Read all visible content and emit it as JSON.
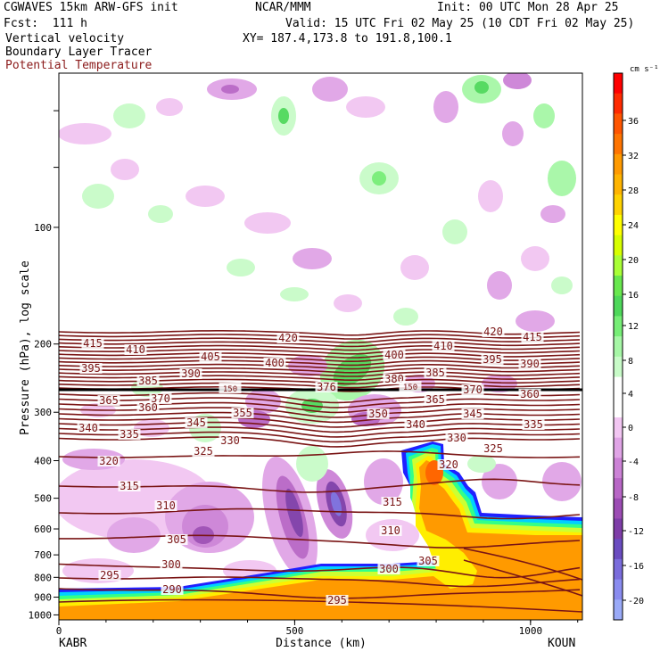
{
  "header": {
    "model": "CGWAVES 15km ARW-GFS init",
    "fcst": "Fcst:  111 h",
    "org": "NCAR/MMM",
    "init": "Init: 00 UTC Mon 28 Apr 25",
    "valid": "Valid: 15 UTC Fri 02 May 25 (10 CDT Fri 02 May 25)",
    "field1": "Vertical velocity",
    "field2": "Boundary Layer Tracer",
    "field3": "Potential Temperature",
    "xy": "XY= 187.4,173.8 to 191.8,100.1",
    "field3_color": "#8b1a1a"
  },
  "chart_data": {
    "type": "heatmap",
    "xlabel": "Distance (km)",
    "ylabel": "Pressure (hPa), log scale",
    "x_ticks": [
      "0",
      "500",
      "1000"
    ],
    "x_range": [
      0,
      1110
    ],
    "y_ticks": [
      "100",
      "200",
      "300",
      "400",
      "500",
      "600",
      "700",
      "800",
      "900",
      "1000"
    ],
    "y_range_hPa": [
      40,
      1030
    ],
    "y_scale": "log",
    "left_endpoint": "KABR",
    "right_endpoint": "KOUN",
    "colorbar": {
      "unit": "cm s⁻¹",
      "tick_labels": [
        "36",
        "32",
        "28",
        "24",
        "20",
        "16",
        "12",
        "8",
        "4",
        "0",
        "-4",
        "-8",
        "-12",
        "-16",
        "-20"
      ],
      "colors": [
        "#ff0000",
        "#ff2a00",
        "#ff5500",
        "#ff7400",
        "#ff9a00",
        "#ffb400",
        "#ffd300",
        "#ffff00",
        "#d7ff00",
        "#a9ff36",
        "#68e84e",
        "#4ed85a",
        "#76ee76",
        "#a6f7a6",
        "#c8fbc8",
        "#ffffff",
        "#ffffff",
        "#f2c6f2",
        "#e0a4e6",
        "#cc82d6",
        "#b866c6",
        "#9c4cb4",
        "#7e3da8",
        "#6a4cc0",
        "#7a6cdc",
        "#8a8cf0",
        "#9aaaf8"
      ]
    },
    "theta_labels": [
      "415",
      "410",
      "420",
      "410",
      "420",
      "415",
      "395",
      "405",
      "400",
      "400",
      "395",
      "390",
      "390",
      "385",
      "376",
      "380",
      "385",
      "365",
      "370",
      "370",
      "360",
      "365",
      "360",
      "355",
      "350",
      "345",
      "340",
      "335",
      "345",
      "330",
      "340",
      "330",
      "325",
      "335",
      "325",
      "320",
      "320",
      "315",
      "315",
      "310",
      "310",
      "305",
      "305",
      "300",
      "300",
      "295",
      "290",
      "295",
      "150",
      "150"
    ]
  }
}
